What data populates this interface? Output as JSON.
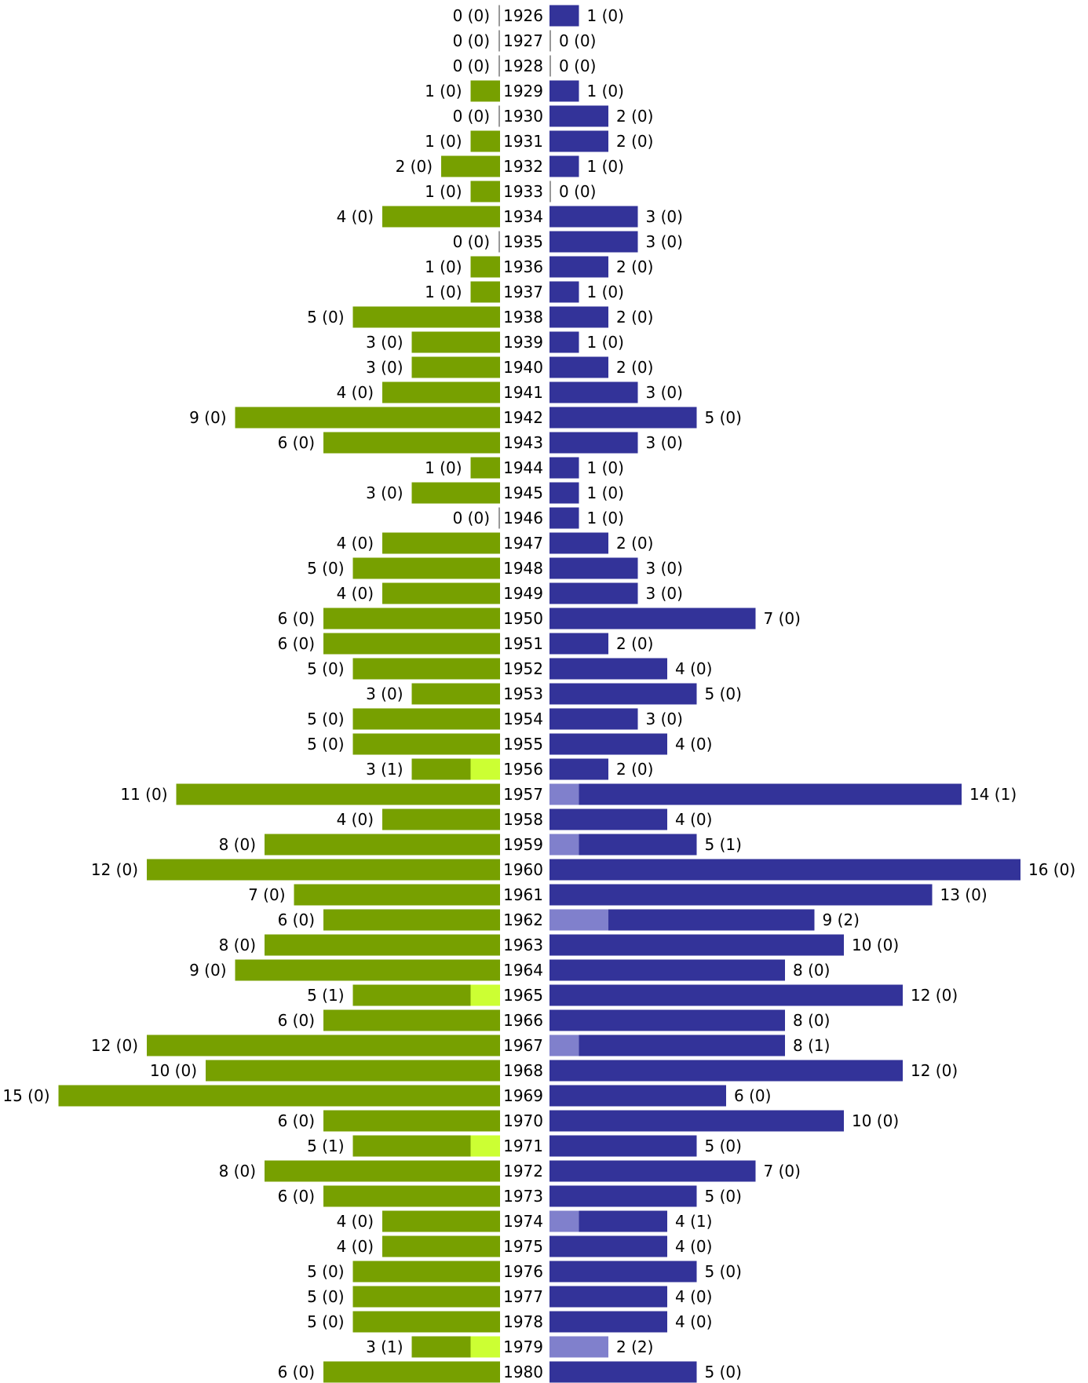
{
  "chart_data": {
    "type": "bar",
    "orientation": "horizontal-diverging",
    "colors": {
      "left_bar": "#77a000",
      "left_highlight": "#ccff33",
      "right_bar": "#333399",
      "right_highlight": "#8080cc",
      "zero_tick": "#999999"
    },
    "categories": [
      "1926",
      "1927",
      "1928",
      "1929",
      "1930",
      "1931",
      "1932",
      "1933",
      "1934",
      "1935",
      "1936",
      "1937",
      "1938",
      "1939",
      "1940",
      "1941",
      "1942",
      "1943",
      "1944",
      "1945",
      "1946",
      "1947",
      "1948",
      "1949",
      "1950",
      "1951",
      "1952",
      "1953",
      "1954",
      "1955",
      "1956",
      "1957",
      "1958",
      "1959",
      "1960",
      "1961",
      "1962",
      "1963",
      "1964",
      "1965",
      "1966",
      "1967",
      "1968",
      "1969",
      "1970",
      "1971",
      "1972",
      "1973",
      "1974",
      "1975",
      "1976",
      "1977",
      "1978",
      "1979",
      "1980"
    ],
    "series": [
      {
        "side": "left",
        "values": [
          0,
          0,
          0,
          1,
          0,
          1,
          2,
          1,
          4,
          0,
          1,
          1,
          5,
          3,
          3,
          4,
          9,
          6,
          1,
          3,
          0,
          4,
          5,
          4,
          6,
          6,
          5,
          3,
          5,
          5,
          3,
          11,
          4,
          8,
          12,
          7,
          6,
          8,
          9,
          5,
          6,
          12,
          10,
          15,
          6,
          5,
          8,
          6,
          4,
          4,
          5,
          5,
          5,
          3,
          6
        ],
        "highlight": [
          0,
          0,
          0,
          0,
          0,
          0,
          0,
          0,
          0,
          0,
          0,
          0,
          0,
          0,
          0,
          0,
          0,
          0,
          0,
          0,
          0,
          0,
          0,
          0,
          0,
          0,
          0,
          0,
          0,
          0,
          1,
          0,
          0,
          0,
          0,
          0,
          0,
          0,
          0,
          1,
          0,
          0,
          0,
          0,
          0,
          1,
          0,
          0,
          0,
          0,
          0,
          0,
          0,
          1,
          0
        ],
        "labels": [
          "0 (0)",
          "0 (0)",
          "0 (0)",
          "1 (0)",
          "0 (0)",
          "1 (0)",
          "2 (0)",
          "1 (0)",
          "4 (0)",
          "0 (0)",
          "1 (0)",
          "1 (0)",
          "5 (0)",
          "3 (0)",
          "3 (0)",
          "4 (0)",
          "9 (0)",
          "6 (0)",
          "1 (0)",
          "3 (0)",
          "0 (0)",
          "4 (0)",
          "5 (0)",
          "4 (0)",
          "6 (0)",
          "6 (0)",
          "5 (0)",
          "3 (0)",
          "5 (0)",
          "5 (0)",
          "3 (1)",
          "11 (0)",
          "4 (0)",
          "8 (0)",
          "12 (0)",
          "7 (0)",
          "6 (0)",
          "8 (0)",
          "9 (0)",
          "5 (1)",
          "6 (0)",
          "12 (0)",
          "10 (0)",
          "15 (0)",
          "6 (0)",
          "5 (1)",
          "8 (0)",
          "6 (0)",
          "4 (0)",
          "4 (0)",
          "5 (0)",
          "5 (0)",
          "5 (0)",
          "3 (1)",
          "6 (0)"
        ]
      },
      {
        "side": "right",
        "values": [
          1,
          0,
          0,
          1,
          2,
          2,
          1,
          0,
          3,
          3,
          2,
          1,
          2,
          1,
          2,
          3,
          5,
          3,
          1,
          1,
          1,
          2,
          3,
          3,
          7,
          2,
          4,
          5,
          3,
          4,
          2,
          14,
          4,
          5,
          16,
          13,
          9,
          10,
          8,
          12,
          8,
          8,
          12,
          6,
          10,
          5,
          7,
          5,
          4,
          4,
          5,
          4,
          4,
          2,
          5
        ],
        "highlight": [
          0,
          0,
          0,
          0,
          0,
          0,
          0,
          0,
          0,
          0,
          0,
          0,
          0,
          0,
          0,
          0,
          0,
          0,
          0,
          0,
          0,
          0,
          0,
          0,
          0,
          0,
          0,
          0,
          0,
          0,
          0,
          1,
          0,
          1,
          0,
          0,
          2,
          0,
          0,
          0,
          0,
          1,
          0,
          0,
          0,
          0,
          0,
          0,
          1,
          0,
          0,
          0,
          0,
          2,
          0
        ],
        "labels": [
          "1 (0)",
          "0 (0)",
          "0 (0)",
          "1 (0)",
          "2 (0)",
          "2 (0)",
          "1 (0)",
          "0 (0)",
          "3 (0)",
          "3 (0)",
          "2 (0)",
          "1 (0)",
          "2 (0)",
          "1 (0)",
          "2 (0)",
          "3 (0)",
          "5 (0)",
          "3 (0)",
          "1 (0)",
          "1 (0)",
          "1 (0)",
          "2 (0)",
          "3 (0)",
          "3 (0)",
          "7 (0)",
          "2 (0)",
          "4 (0)",
          "5 (0)",
          "3 (0)",
          "4 (0)",
          "2 (0)",
          "14 (1)",
          "4 (0)",
          "5 (1)",
          "16 (0)",
          "13 (0)",
          "9 (2)",
          "10 (0)",
          "8 (0)",
          "12 (0)",
          "8 (0)",
          "8 (1)",
          "12 (0)",
          "6 (0)",
          "10 (0)",
          "5 (0)",
          "7 (0)",
          "5 (0)",
          "4 (1)",
          "4 (0)",
          "5 (0)",
          "4 (0)",
          "4 (0)",
          "2 (2)",
          "5 (0)"
        ]
      }
    ]
  }
}
